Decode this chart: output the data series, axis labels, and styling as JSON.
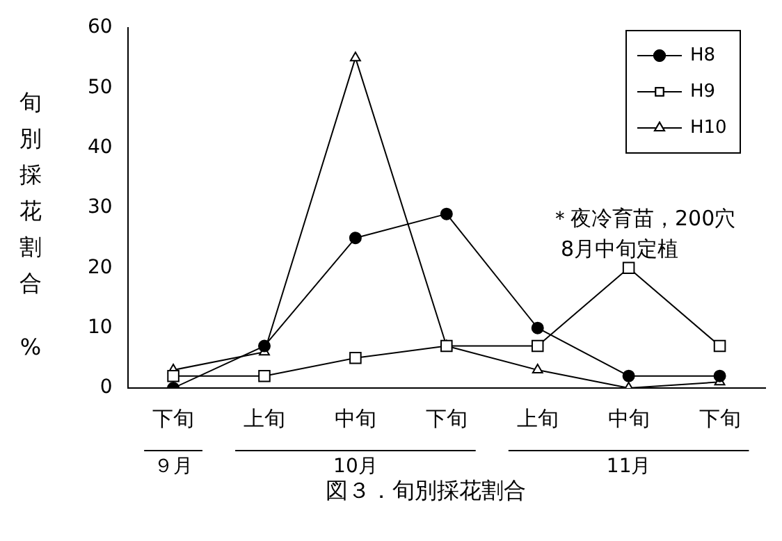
{
  "chart_data": {
    "type": "line",
    "title": "図３．旬別採花割合",
    "ylabel": "旬別採花割合 %",
    "categories": [
      "下旬",
      "上旬",
      "中旬",
      "下旬",
      "上旬",
      "中旬",
      "下旬"
    ],
    "series": [
      {
        "name": "H8",
        "color": "#000000",
        "marker": "circle",
        "values": [
          0,
          7,
          25,
          29,
          10,
          2,
          2
        ]
      },
      {
        "name": "H9",
        "color": "#000000",
        "marker": "square",
        "values": [
          2,
          2,
          5,
          7,
          7,
          20,
          7
        ]
      },
      {
        "name": "H10",
        "color": "#000000",
        "marker": "triangle",
        "values": [
          3,
          6,
          55,
          7,
          3,
          0,
          1
        ]
      }
    ],
    "ylim": [
      0,
      60
    ],
    "yticks": [
      0,
      10,
      20,
      30,
      40,
      50,
      60
    ],
    "grid": false,
    "legend": "top right",
    "line_style": "solid",
    "annotations": [
      "９月",
      "10月",
      "11月",
      "＊夜冷育苗，200穴",
      "8月中旬定植"
    ]
  }
}
